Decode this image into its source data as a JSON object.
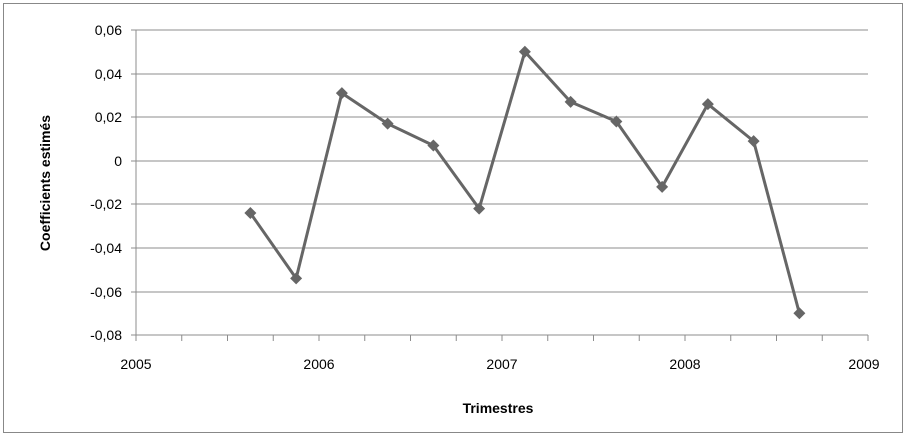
{
  "chart_data": {
    "type": "line",
    "title": "",
    "xlabel": "Trimestres",
    "ylabel": "Coefficients estimés",
    "xlim": [
      2005,
      2009
    ],
    "ylim": [
      -0.08,
      0.06
    ],
    "x_ticks": [
      "2005",
      "2006",
      "2007",
      "2008",
      "2009"
    ],
    "y_ticks": [
      "0,06",
      "0,04",
      "0,02",
      "0",
      "-0,02",
      "-0,04",
      "-0,06",
      "-0,08"
    ],
    "grid": true,
    "legend": "none",
    "series": [
      {
        "color": "#666666",
        "marker": "diamond",
        "x": [
          2005.625,
          2005.875,
          2006.125,
          2006.375,
          2006.625,
          2006.875,
          2007.125,
          2007.375,
          2007.625,
          2007.875,
          2008.125,
          2008.375,
          2008.625
        ],
        "y": [
          -0.024,
          -0.054,
          0.031,
          0.017,
          0.007,
          -0.022,
          0.05,
          0.027,
          0.018,
          -0.012,
          0.026,
          0.009,
          -0.07
        ]
      }
    ]
  }
}
